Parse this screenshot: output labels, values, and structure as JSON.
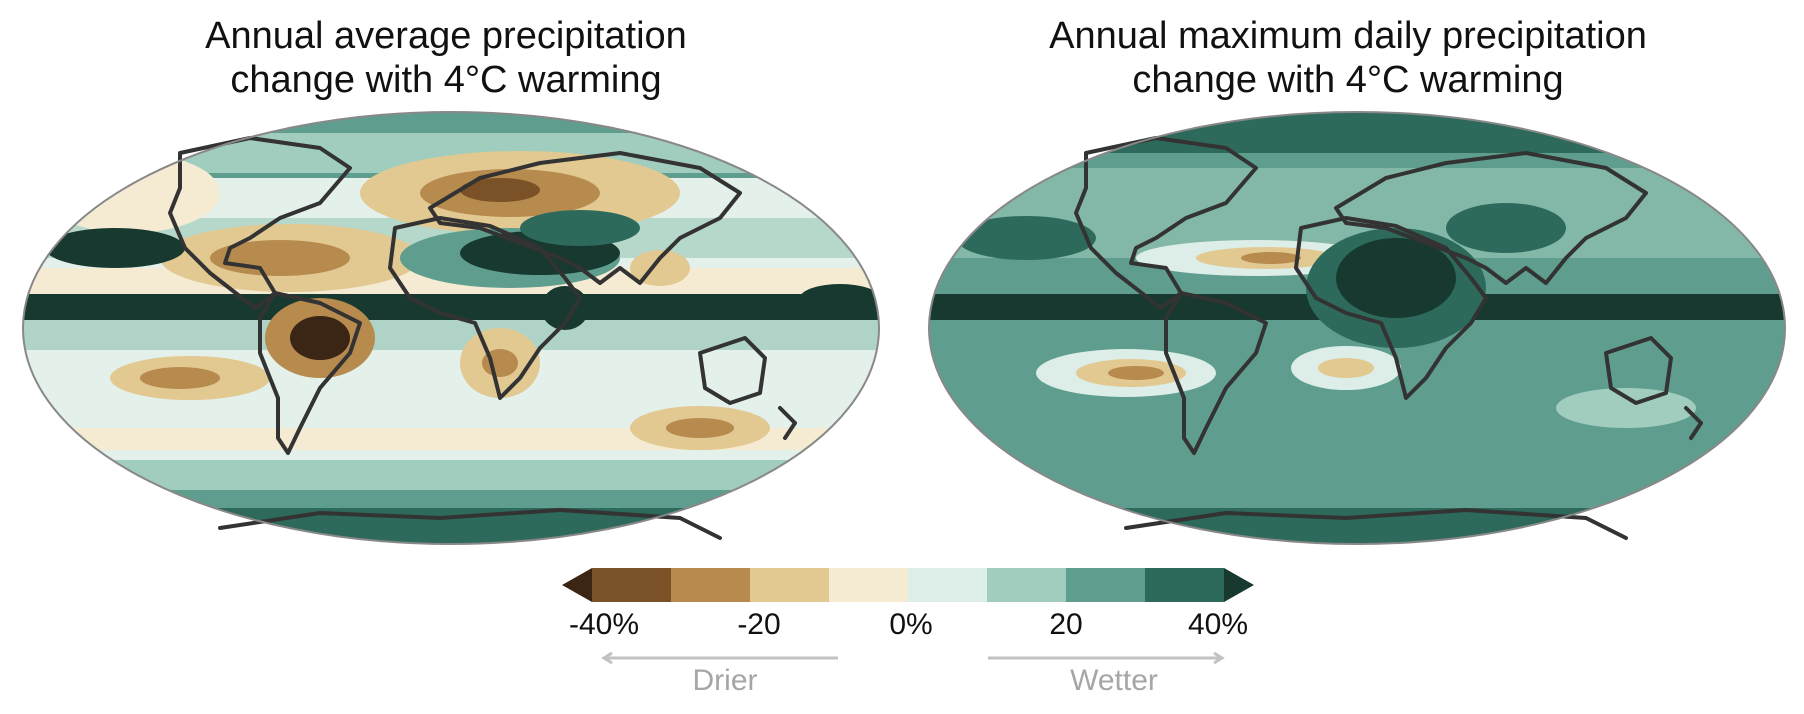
{
  "panels": [
    {
      "title_line1": "Annual average precipitation",
      "title_line2": "change with 4°C warming"
    },
    {
      "title_line1": "Annual maximum daily precipitation",
      "title_line2": "change with 4°C warming"
    }
  ],
  "legend": {
    "ticks": [
      "-40%",
      "-20",
      "0%",
      "20",
      "40%"
    ],
    "drier_label": "Drier",
    "wetter_label": "Wetter",
    "colors": [
      "#3b2615",
      "#7b5127",
      "#b78a4e",
      "#e2c891",
      "#f5ebd3",
      "#ddeee8",
      "#a1cdbe",
      "#5f9e8f",
      "#2d6a5c",
      "#17392f"
    ]
  },
  "colors": {
    "coastline": "#333333",
    "map_border": "#888888",
    "arrow": "#c2c2c2"
  }
}
